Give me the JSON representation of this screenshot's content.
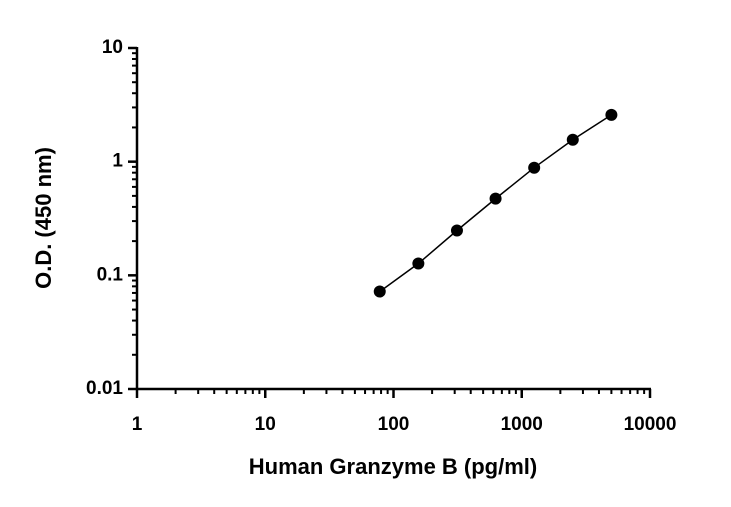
{
  "chart_data": {
    "type": "scatter",
    "x_label": "Human Granzyme B (pg/ml)",
    "y_label": "O.D. (450 nm)",
    "x": [
      78.125,
      156.25,
      312.5,
      625,
      1250,
      2500,
      5000
    ],
    "values": [
      0.072,
      0.127,
      0.248,
      0.473,
      0.885,
      1.56,
      2.58
    ],
    "color": "#000000",
    "line": true,
    "xscale": "log",
    "yscale": "log",
    "xlim": [
      1,
      10000
    ],
    "xticks": [
      1,
      10,
      100,
      1000,
      10000
    ],
    "ylim": [
      0.01,
      10
    ],
    "yticks": [
      0.01,
      0.1,
      1,
      10
    ],
    "grid": false
  }
}
